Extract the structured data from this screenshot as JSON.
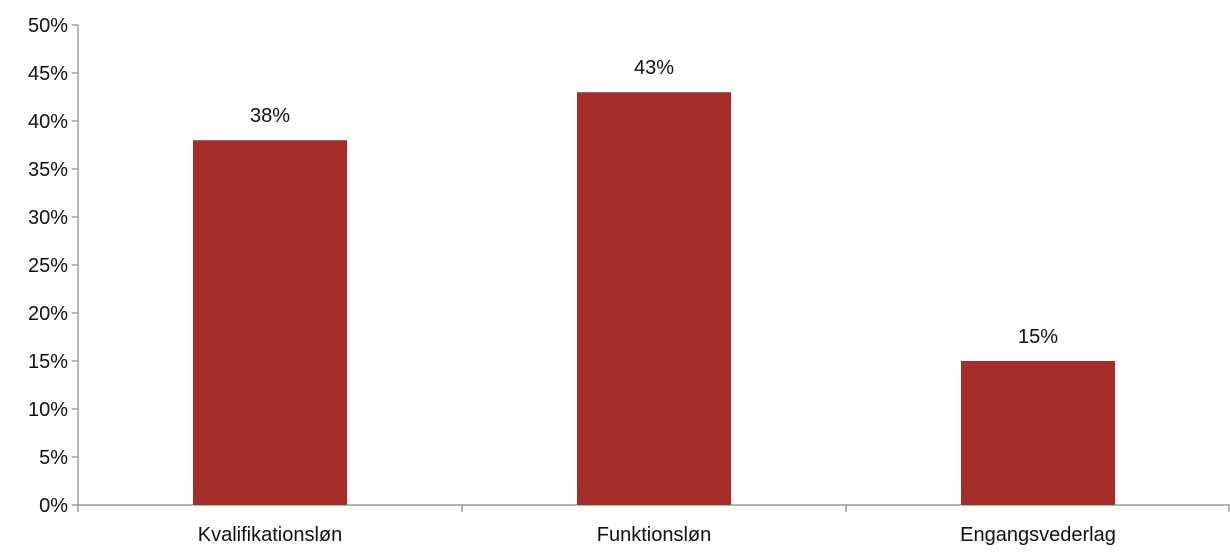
{
  "chart_data": {
    "type": "bar",
    "categories": [
      "Kvalifikationsløn",
      "Funktionsløn",
      "Engangsvederlag"
    ],
    "values": [
      38,
      43,
      15
    ],
    "value_labels": [
      "38%",
      "43%",
      "15%"
    ],
    "ylim": [
      0,
      50
    ],
    "y_ticks": [
      0,
      5,
      10,
      15,
      20,
      25,
      30,
      35,
      40,
      45,
      50
    ],
    "y_tick_labels": [
      "0%",
      "5%",
      "10%",
      "15%",
      "20%",
      "25%",
      "30%",
      "35%",
      "40%",
      "45%",
      "50%"
    ],
    "grid": false,
    "legend": "none",
    "bar_color": "#A52D2A",
    "axis_color": "#888888"
  }
}
